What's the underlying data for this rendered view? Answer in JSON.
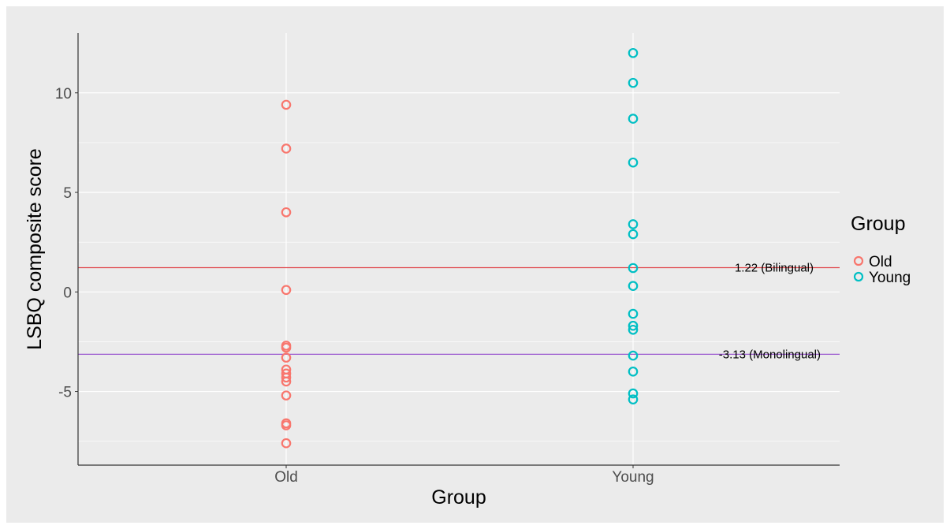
{
  "chart_data": {
    "type": "scatter",
    "title": "",
    "xlabel": "Group",
    "ylabel": "LSBQ composite score",
    "categories": [
      "Old",
      "Young"
    ],
    "ylim": [
      -8.7,
      13.0
    ],
    "yticks": [
      -5,
      0,
      5,
      10
    ],
    "ytick_labels": [
      "-5",
      "0",
      "5",
      "10"
    ],
    "grid": true,
    "legend": {
      "title": "Group",
      "position": "right",
      "entries": [
        "Old",
        "Young"
      ]
    },
    "series": [
      {
        "name": "Old",
        "color": "#f8766d",
        "values": [
          9.4,
          7.2,
          4.0,
          0.1,
          -2.7,
          -2.8,
          -3.3,
          -3.9,
          -4.1,
          -4.3,
          -4.5,
          -5.2,
          -6.6,
          -6.7,
          -7.6
        ]
      },
      {
        "name": "Young",
        "color": "#00bfc4",
        "values": [
          12.0,
          10.5,
          8.7,
          6.5,
          3.4,
          2.9,
          1.2,
          0.3,
          -1.1,
          -1.7,
          -1.9,
          -3.2,
          -4.0,
          -5.1,
          -5.4
        ]
      }
    ],
    "reference_lines": [
      {
        "value": 1.22,
        "label": "1.22 (Bilingual)",
        "color": "#e0474c"
      },
      {
        "value": -3.13,
        "label": "-3.13 (Monolingual)",
        "color": "#9b59d0"
      }
    ]
  }
}
